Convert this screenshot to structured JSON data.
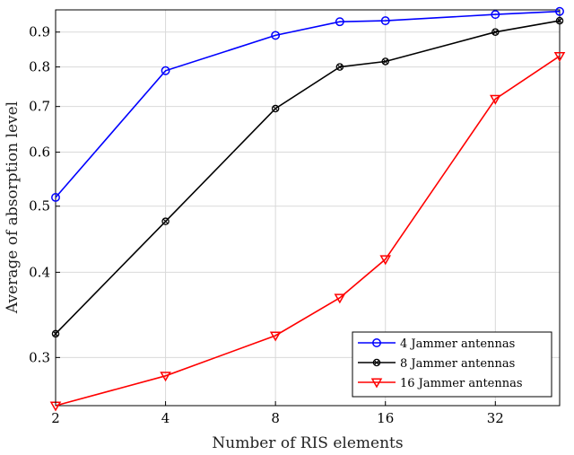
{
  "chart_data": {
    "type": "line",
    "xlabel": "Number of RIS elements",
    "ylabel": "Average of absorption level",
    "x_scale": "log2",
    "y_scale": "log",
    "xlim": [
      2,
      48
    ],
    "ylim": [
      0.255,
      0.97
    ],
    "x_ticks": [
      2,
      4,
      8,
      16,
      32
    ],
    "x_tick_labels": [
      "2",
      "4",
      "8",
      "16",
      "32"
    ],
    "y_ticks": [
      0.3,
      0.4,
      0.5,
      0.6,
      0.7,
      0.8,
      0.9
    ],
    "y_tick_labels": [
      "0.3",
      "0.4",
      "0.5",
      "0.6",
      "0.7",
      "0.8",
      "0.9"
    ],
    "grid": true,
    "legend_position": "bottom-right",
    "x": [
      2,
      4,
      8,
      12,
      16,
      32,
      48
    ],
    "series": [
      {
        "name": "4 Jammer antennas",
        "color": "#0000ff",
        "marker": "circle",
        "values": [
          0.515,
          0.79,
          0.89,
          0.932,
          0.935,
          0.955,
          0.965
        ]
      },
      {
        "name": "8 Jammer antennas",
        "color": "#000000",
        "marker": "circle-x",
        "values": [
          0.325,
          0.475,
          0.695,
          0.8,
          0.815,
          0.9,
          0.935
        ]
      },
      {
        "name": "16 Jammer antennas",
        "color": "#ff0000",
        "marker": "triangle-down",
        "values": [
          0.255,
          0.282,
          0.323,
          0.367,
          0.418,
          0.718,
          0.83
        ]
      }
    ]
  }
}
